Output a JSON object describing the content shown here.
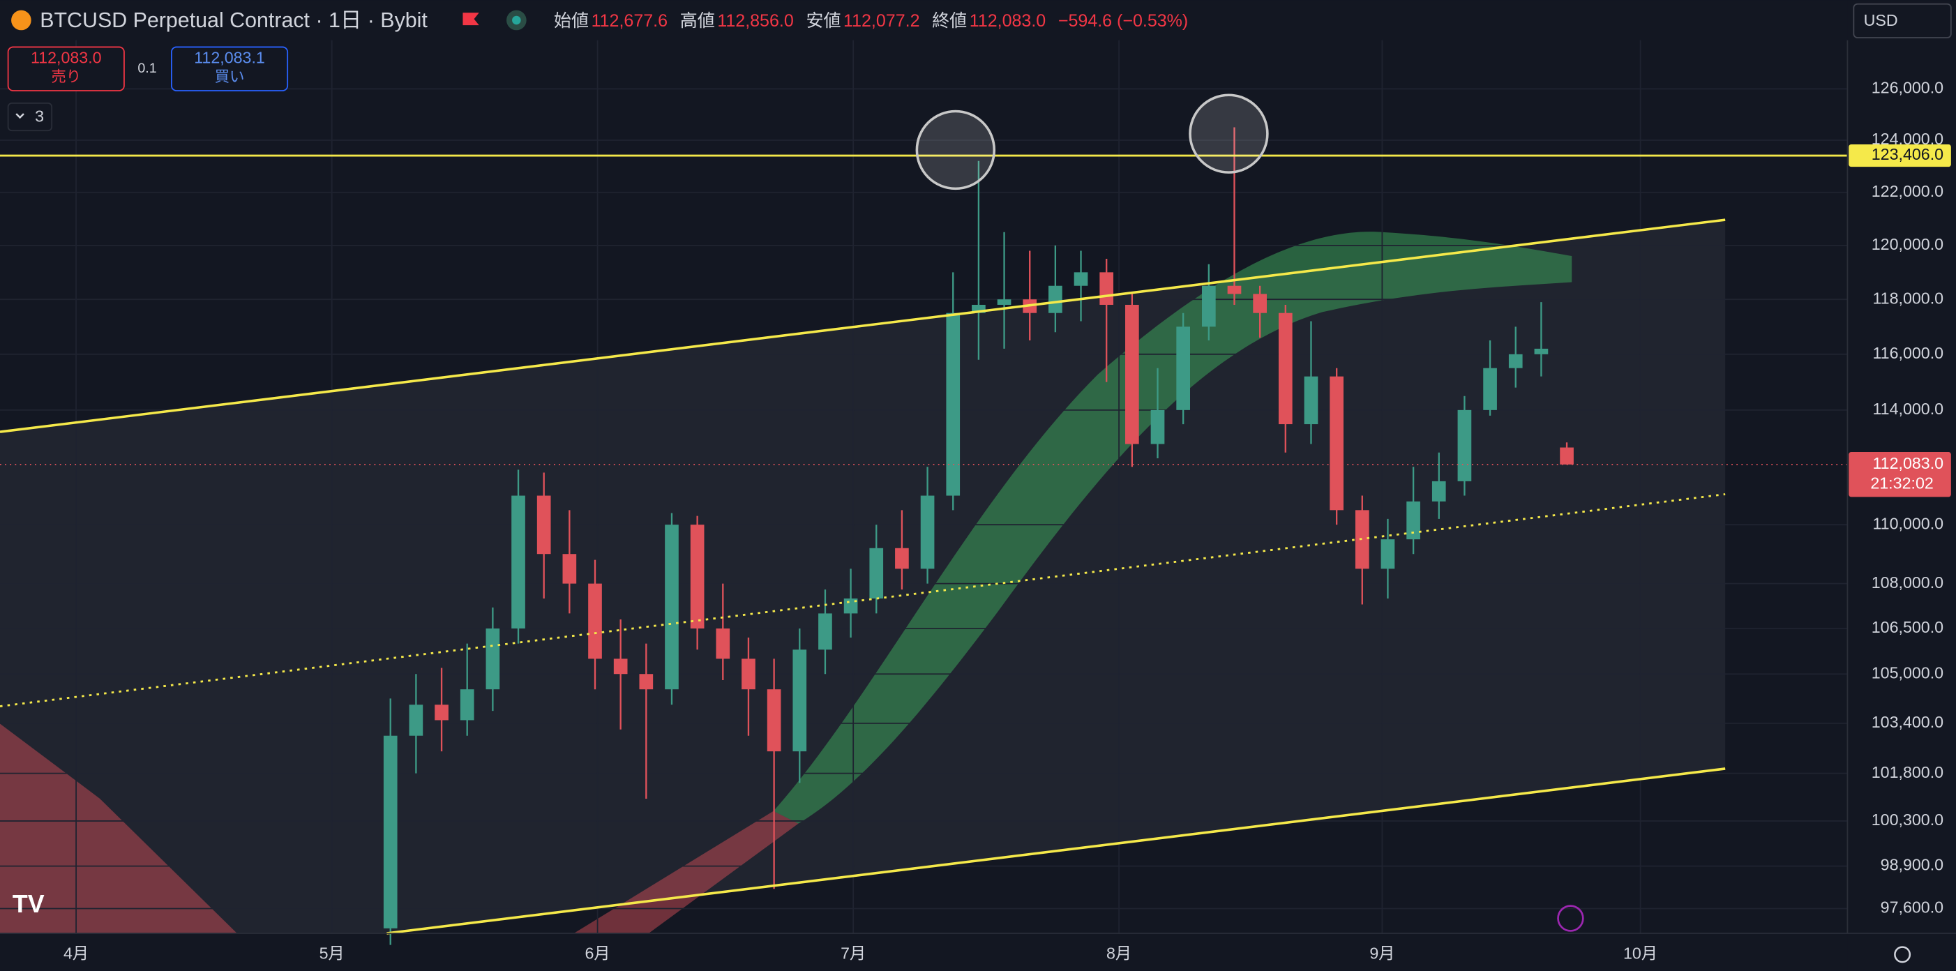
{
  "header": {
    "symbol": "BTCUSD Perpetual Contract · 1日 · Bybit",
    "open_label": "始値",
    "open": "112,677.6",
    "high_label": "高値",
    "high": "112,856.0",
    "low_label": "安値",
    "low": "112,077.2",
    "close_label": "終値",
    "close": "112,083.0",
    "change": "−594.6 (−0.53%)"
  },
  "currency": "USD",
  "sell": {
    "price": "112,083.0",
    "label": "売り"
  },
  "spread": "0.1",
  "buy": {
    "price": "112,083.1",
    "label": "買い"
  },
  "indicator_toggle": "3",
  "chart_data": {
    "type": "candlestick",
    "log_scale": true,
    "grid": true,
    "up_color": "#3d9a86",
    "down_color": "#e0525a",
    "ylim": [
      96850,
      127925
    ],
    "yticks": [
      {
        "value": 126000,
        "label": "126,000.0"
      },
      {
        "value": 124000,
        "label": "124,000.0"
      },
      {
        "value": 122000,
        "label": "122,000.0"
      },
      {
        "value": 120000,
        "label": "120,000.0"
      },
      {
        "value": 118000,
        "label": "118,000.0"
      },
      {
        "value": 116000,
        "label": "116,000.0"
      },
      {
        "value": 114000,
        "label": "114,000.0"
      },
      {
        "value": 110000,
        "label": "110,000.0"
      },
      {
        "value": 108000,
        "label": "108,000.0"
      },
      {
        "value": 106500,
        "label": "106,500.0"
      },
      {
        "value": 105000,
        "label": "105,000.0"
      },
      {
        "value": 103400,
        "label": "103,400.0"
      },
      {
        "value": 101800,
        "label": "101,800.0"
      },
      {
        "value": 100300,
        "label": "100,300.0"
      },
      {
        "value": 98900,
        "label": "98,900.0"
      },
      {
        "value": 97600,
        "label": "97,600.0"
      }
    ],
    "x_labels": [
      "4月",
      "5月",
      "6月",
      "7月",
      "8月",
      "9月",
      "10月"
    ],
    "hline": {
      "value": 123406,
      "label": "123,406.0",
      "color": "#f5e94a"
    },
    "last_price": {
      "value": 112083,
      "label": "112,083.0",
      "countdown": "21:32:02",
      "color": "#e0525a"
    },
    "candles": [
      [
        97000,
        104200,
        96500,
        103000
      ],
      [
        103000,
        105000,
        101800,
        104000
      ],
      [
        104000,
        105200,
        102500,
        103500
      ],
      [
        103500,
        106000,
        103000,
        104500
      ],
      [
        104500,
        107200,
        103800,
        106500
      ],
      [
        106500,
        111900,
        106000,
        111000
      ],
      [
        111000,
        111800,
        107500,
        109000
      ],
      [
        109000,
        110500,
        107000,
        108000
      ],
      [
        108000,
        108800,
        104500,
        105500
      ],
      [
        105500,
        106800,
        103200,
        105000
      ],
      [
        105000,
        106000,
        101000,
        104500
      ],
      [
        104500,
        110400,
        104000,
        110000
      ],
      [
        110000,
        110300,
        105800,
        106500
      ],
      [
        106500,
        108000,
        104800,
        105500
      ],
      [
        105500,
        106200,
        103000,
        104500
      ],
      [
        104500,
        105500,
        98200,
        102500
      ],
      [
        102500,
        106500,
        101500,
        105800
      ],
      [
        105800,
        107800,
        105000,
        107000
      ],
      [
        107000,
        108500,
        106200,
        107500
      ],
      [
        107500,
        110000,
        107000,
        109200
      ],
      [
        109200,
        110500,
        107800,
        108500
      ],
      [
        108500,
        112000,
        108000,
        111000
      ],
      [
        111000,
        119000,
        110500,
        117500
      ],
      [
        117500,
        123200,
        115800,
        117800
      ],
      [
        117800,
        120500,
        116200,
        118000
      ],
      [
        118000,
        119800,
        116500,
        117500
      ],
      [
        117500,
        120000,
        116800,
        118500
      ],
      [
        118500,
        119800,
        117200,
        119000
      ],
      [
        119000,
        119500,
        115000,
        117800
      ],
      [
        117800,
        118200,
        112000,
        112800
      ],
      [
        112800,
        115500,
        112300,
        114000
      ],
      [
        114000,
        117500,
        113500,
        117000
      ],
      [
        117000,
        119300,
        116500,
        118500
      ],
      [
        118500,
        124500,
        117800,
        118200
      ],
      [
        118200,
        118500,
        116600,
        117500
      ],
      [
        117500,
        117800,
        112500,
        113500
      ],
      [
        113500,
        117200,
        112800,
        115200
      ],
      [
        115200,
        115500,
        110000,
        110500
      ],
      [
        110500,
        111000,
        107300,
        108500
      ],
      [
        108500,
        110200,
        107500,
        109500
      ],
      [
        109500,
        112000,
        109000,
        110800
      ],
      [
        110800,
        112500,
        110200,
        111500
      ],
      [
        111500,
        114500,
        111000,
        114000
      ],
      [
        114000,
        116500,
        113800,
        115500
      ],
      [
        115500,
        117000,
        114800,
        116000
      ],
      [
        116000,
        117900,
        115200,
        116200
      ],
      [
        112677.6,
        112856,
        112077.2,
        112083
      ]
    ]
  }
}
